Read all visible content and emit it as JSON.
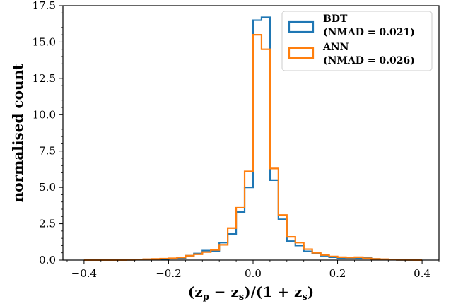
{
  "chart_data": {
    "type": "histogram",
    "xlabel": "(zp − zs)/(1 + zs)",
    "ylabel": "normalised count",
    "xlim": [
      -0.45,
      0.44
    ],
    "ylim": [
      0,
      17.5
    ],
    "xticks": [
      -0.4,
      -0.2,
      0.0,
      0.2,
      0.4
    ],
    "xtick_labels": [
      "−0.4",
      "−0.2",
      "0.0",
      "0.2",
      "0.4"
    ],
    "yticks": [
      0,
      2.5,
      5,
      7.5,
      10,
      12.5,
      15,
      17.5
    ],
    "ytick_labels": [
      "0.0",
      "2.5",
      "5.0",
      "7.5",
      "10.0",
      "12.5",
      "15.0",
      "17.5"
    ],
    "grid": false,
    "legend_position": "top-right",
    "bin_edges": [
      -0.4,
      -0.38,
      -0.36,
      -0.34,
      -0.32,
      -0.3,
      -0.28,
      -0.26,
      -0.24,
      -0.22,
      -0.2,
      -0.18,
      -0.16,
      -0.14,
      -0.12,
      -0.1,
      -0.08,
      -0.06,
      -0.04,
      -0.02,
      0.0,
      0.02,
      0.04,
      0.06,
      0.08,
      0.1,
      0.12,
      0.14,
      0.16,
      0.18,
      0.2,
      0.22,
      0.24,
      0.26,
      0.28,
      0.3,
      0.32,
      0.34,
      0.36,
      0.38,
      0.4
    ],
    "series": [
      {
        "name": "BDT",
        "legend_line1": "BDT",
        "legend_line2": "(NMAD = 0.021)",
        "color": "#1f77b4",
        "values": [
          0.0,
          0.0,
          0.0,
          0.0,
          0.0,
          0.02,
          0.03,
          0.05,
          0.06,
          0.08,
          0.1,
          0.15,
          0.3,
          0.45,
          0.65,
          0.6,
          1.2,
          1.8,
          3.3,
          5.0,
          16.5,
          16.7,
          5.5,
          2.8,
          1.3,
          1.0,
          0.6,
          0.45,
          0.3,
          0.2,
          0.15,
          0.1,
          0.1,
          0.15,
          0.08,
          0.05,
          0.03,
          0.02,
          0.01,
          0.0
        ]
      },
      {
        "name": "ANN",
        "legend_line1": "ANN",
        "legend_line2": "(NMAD = 0.026)",
        "color": "#ff7f0e",
        "values": [
          0.0,
          0.0,
          0.0,
          0.0,
          0.0,
          0.02,
          0.04,
          0.06,
          0.08,
          0.1,
          0.12,
          0.18,
          0.3,
          0.4,
          0.55,
          0.7,
          1.05,
          2.2,
          3.6,
          6.1,
          15.5,
          14.5,
          6.3,
          3.1,
          1.6,
          1.2,
          0.75,
          0.5,
          0.35,
          0.25,
          0.2,
          0.18,
          0.2,
          0.12,
          0.08,
          0.06,
          0.03,
          0.02,
          0.01,
          0.0
        ]
      }
    ]
  }
}
